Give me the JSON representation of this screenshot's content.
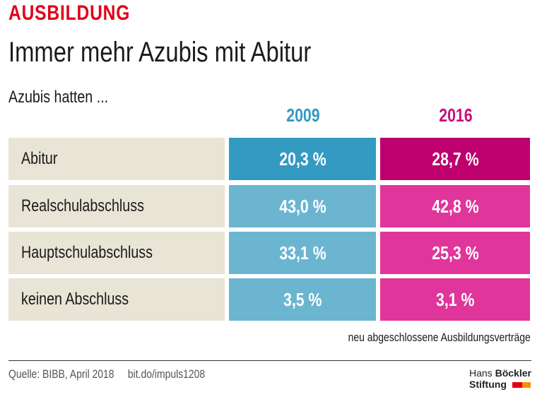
{
  "header": {
    "kicker": "AUSBILDUNG",
    "title": "Immer mehr Azubis mit Abitur",
    "subtitle": "Azubis hatten ..."
  },
  "chart_data": {
    "type": "table",
    "columns": [
      "2009",
      "2016"
    ],
    "rows": [
      {
        "label": "Abitur",
        "values": [
          "20,3 %",
          "28,7 %"
        ]
      },
      {
        "label": "Realschulabschluss",
        "values": [
          "43,0 %",
          "42,8 %"
        ]
      },
      {
        "label": "Hauptschulabschluss",
        "values": [
          "33,1 %",
          "25,3 %"
        ]
      },
      {
        "label": "keinen Abschluss",
        "values": [
          "3,5 %",
          "3,1 %"
        ]
      }
    ],
    "colors": {
      "2009_header": "#3399c3",
      "2016_header": "#cc0a7a",
      "2009_highlight": "#339ac2",
      "2016_highlight": "#bd006e",
      "2009": "#6bb5d1",
      "2016": "#e0359a",
      "label_bg": "#e8e5d6"
    }
  },
  "footer": {
    "note": "neu abgeschlossene Ausbildungsverträge",
    "source": "Quelle: BIBB, April 2018     bit.do/impuls1208",
    "logo_line1_a": "Hans ",
    "logo_line1_b": "Böckler",
    "logo_line2": "Stiftung"
  }
}
